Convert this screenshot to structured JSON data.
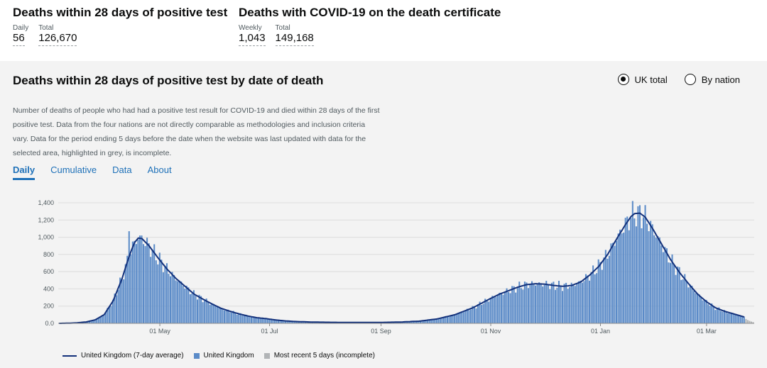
{
  "headlines": [
    {
      "title": "Deaths within 28 days of positive test",
      "metrics": [
        {
          "label": "Daily",
          "value": "56"
        },
        {
          "label": "Total",
          "value": "126,670"
        }
      ]
    },
    {
      "title": "Deaths with COVID-19 on the death certificate",
      "metrics": [
        {
          "label": "Weekly",
          "value": "1,043"
        },
        {
          "label": "Total",
          "value": "149,168"
        }
      ]
    }
  ],
  "card": {
    "title": "Deaths within 28 days of positive test by date of death",
    "radio_options": [
      {
        "label": "UK total",
        "selected": true
      },
      {
        "label": "By nation",
        "selected": false
      }
    ],
    "description": "Number of deaths of people who had had a positive test result for COVID-19 and died within 28 days of the first positive test. Data from the four nations are not directly comparable as methodologies and inclusion criteria vary. Data for the period ending 5 days before the date when the website was last updated with data for the selected area, highlighted in grey, is incomplete.",
    "tabs": [
      {
        "label": "Daily",
        "active": true
      },
      {
        "label": "Cumulative",
        "active": false
      },
      {
        "label": "Data",
        "active": false
      },
      {
        "label": "About",
        "active": false
      }
    ]
  },
  "colors": {
    "bar": "#5b8bc8",
    "line": "#12307a",
    "incomplete": "#b1b4b6",
    "link": "#1d70b8"
  },
  "chart_data": {
    "type": "bar",
    "title": "Deaths within 28 days of positive test by date of death",
    "xlabel": "",
    "ylabel": "",
    "ylim": [
      0,
      1400
    ],
    "yticks": [
      0,
      200,
      400,
      600,
      800,
      1000,
      1200,
      1400
    ],
    "ytick_labels": [
      "0.0",
      "200",
      "400",
      "600",
      "800",
      "1,000",
      "1,200",
      "1,400"
    ],
    "xticks": [
      {
        "day": 56,
        "label": "01 May"
      },
      {
        "day": 117,
        "label": "01 Jul"
      },
      {
        "day": 179,
        "label": "01 Sep"
      },
      {
        "day": 240,
        "label": "01 Nov"
      },
      {
        "day": 301,
        "label": "01 Jan"
      },
      {
        "day": 360,
        "label": "01 Mar"
      }
    ],
    "x_start": "2020-03-06",
    "x_end": "2021-03-27",
    "days": 387,
    "incomplete_last_days": 5,
    "avg_anchors": [
      [
        0,
        0
      ],
      [
        5,
        2
      ],
      [
        10,
        6
      ],
      [
        15,
        16
      ],
      [
        20,
        40
      ],
      [
        25,
        100
      ],
      [
        30,
        260
      ],
      [
        35,
        520
      ],
      [
        38,
        720
      ],
      [
        40,
        840
      ],
      [
        42,
        940
      ],
      [
        44,
        990
      ],
      [
        46,
        985
      ],
      [
        50,
        900
      ],
      [
        55,
        760
      ],
      [
        60,
        630
      ],
      [
        65,
        520
      ],
      [
        70,
        430
      ],
      [
        75,
        340
      ],
      [
        80,
        280
      ],
      [
        85,
        225
      ],
      [
        90,
        175
      ],
      [
        95,
        140
      ],
      [
        100,
        110
      ],
      [
        105,
        85
      ],
      [
        110,
        65
      ],
      [
        115,
        55
      ],
      [
        120,
        40
      ],
      [
        125,
        30
      ],
      [
        130,
        22
      ],
      [
        140,
        15
      ],
      [
        150,
        12
      ],
      [
        160,
        10
      ],
      [
        170,
        10
      ],
      [
        180,
        11
      ],
      [
        190,
        15
      ],
      [
        200,
        25
      ],
      [
        210,
        50
      ],
      [
        220,
        100
      ],
      [
        230,
        180
      ],
      [
        240,
        290
      ],
      [
        245,
        340
      ],
      [
        250,
        380
      ],
      [
        255,
        420
      ],
      [
        260,
        450
      ],
      [
        265,
        460
      ],
      [
        270,
        455
      ],
      [
        275,
        440
      ],
      [
        280,
        430
      ],
      [
        285,
        440
      ],
      [
        290,
        480
      ],
      [
        295,
        560
      ],
      [
        300,
        660
      ],
      [
        305,
        800
      ],
      [
        310,
        980
      ],
      [
        315,
        1150
      ],
      [
        318,
        1240
      ],
      [
        320,
        1275
      ],
      [
        323,
        1280
      ],
      [
        326,
        1230
      ],
      [
        330,
        1100
      ],
      [
        335,
        920
      ],
      [
        340,
        740
      ],
      [
        345,
        590
      ],
      [
        350,
        460
      ],
      [
        355,
        340
      ],
      [
        360,
        250
      ],
      [
        365,
        180
      ],
      [
        370,
        140
      ],
      [
        375,
        110
      ],
      [
        380,
        80
      ],
      [
        383,
        60
      ],
      [
        387,
        45
      ]
    ],
    "series": [
      {
        "name": "United Kingdom (7-day average)",
        "style": "line"
      },
      {
        "name": "United Kingdom",
        "style": "bar"
      },
      {
        "name": "Most recent 5 days (incomplete)",
        "style": "bar"
      }
    ]
  }
}
